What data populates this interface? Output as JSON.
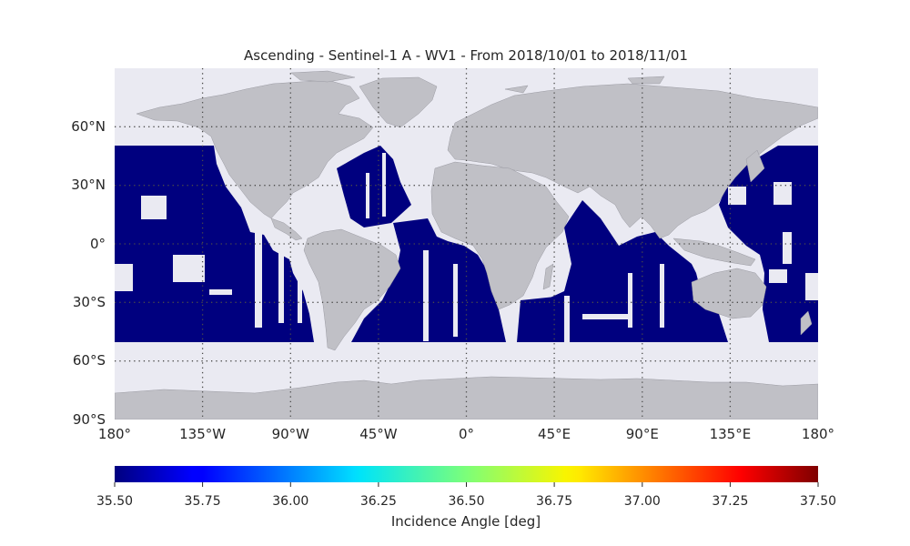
{
  "title": "Ascending - Sentinel-1 A - WV1 - From 2018/10/01 to 2018/11/01",
  "map": {
    "projection": "Plate Carree",
    "lon_range": [
      -180,
      180
    ],
    "lat_range": [
      -90,
      90
    ],
    "ocean_color": "#eaeaf2",
    "land_color": "#c0c0c6",
    "grid_style": "dotted",
    "lat_ticks": [
      {
        "value": 60,
        "label": "60°N"
      },
      {
        "value": 30,
        "label": "30°N"
      },
      {
        "value": 0,
        "label": "0°"
      },
      {
        "value": -30,
        "label": "30°S"
      },
      {
        "value": -60,
        "label": "60°S"
      },
      {
        "value": -90,
        "label": "90°S"
      }
    ],
    "lon_ticks": [
      {
        "value": -180,
        "label": "180°"
      },
      {
        "value": -135,
        "label": "135°W"
      },
      {
        "value": -90,
        "label": "90°W"
      },
      {
        "value": -45,
        "label": "45°W"
      },
      {
        "value": 0,
        "label": "0°"
      },
      {
        "value": 45,
        "label": "45°E"
      },
      {
        "value": 90,
        "label": "90°E"
      },
      {
        "value": 135,
        "label": "135°E"
      },
      {
        "value": 180,
        "label": "180°"
      }
    ],
    "data_color": "#00007f",
    "data_lat_range": [
      -50,
      50
    ],
    "data_coverage": "Ascending Sentinel-1A WV1 swath cells over open ocean, nearly uniform at the colorbar minimum"
  },
  "colorbar": {
    "label": "Incidence Angle [deg]",
    "vmin": 35.5,
    "vmax": 37.5,
    "colormap": "jet",
    "ticks": [
      "35.50",
      "35.75",
      "36.00",
      "36.25",
      "36.50",
      "36.75",
      "37.00",
      "37.25",
      "37.50"
    ]
  }
}
